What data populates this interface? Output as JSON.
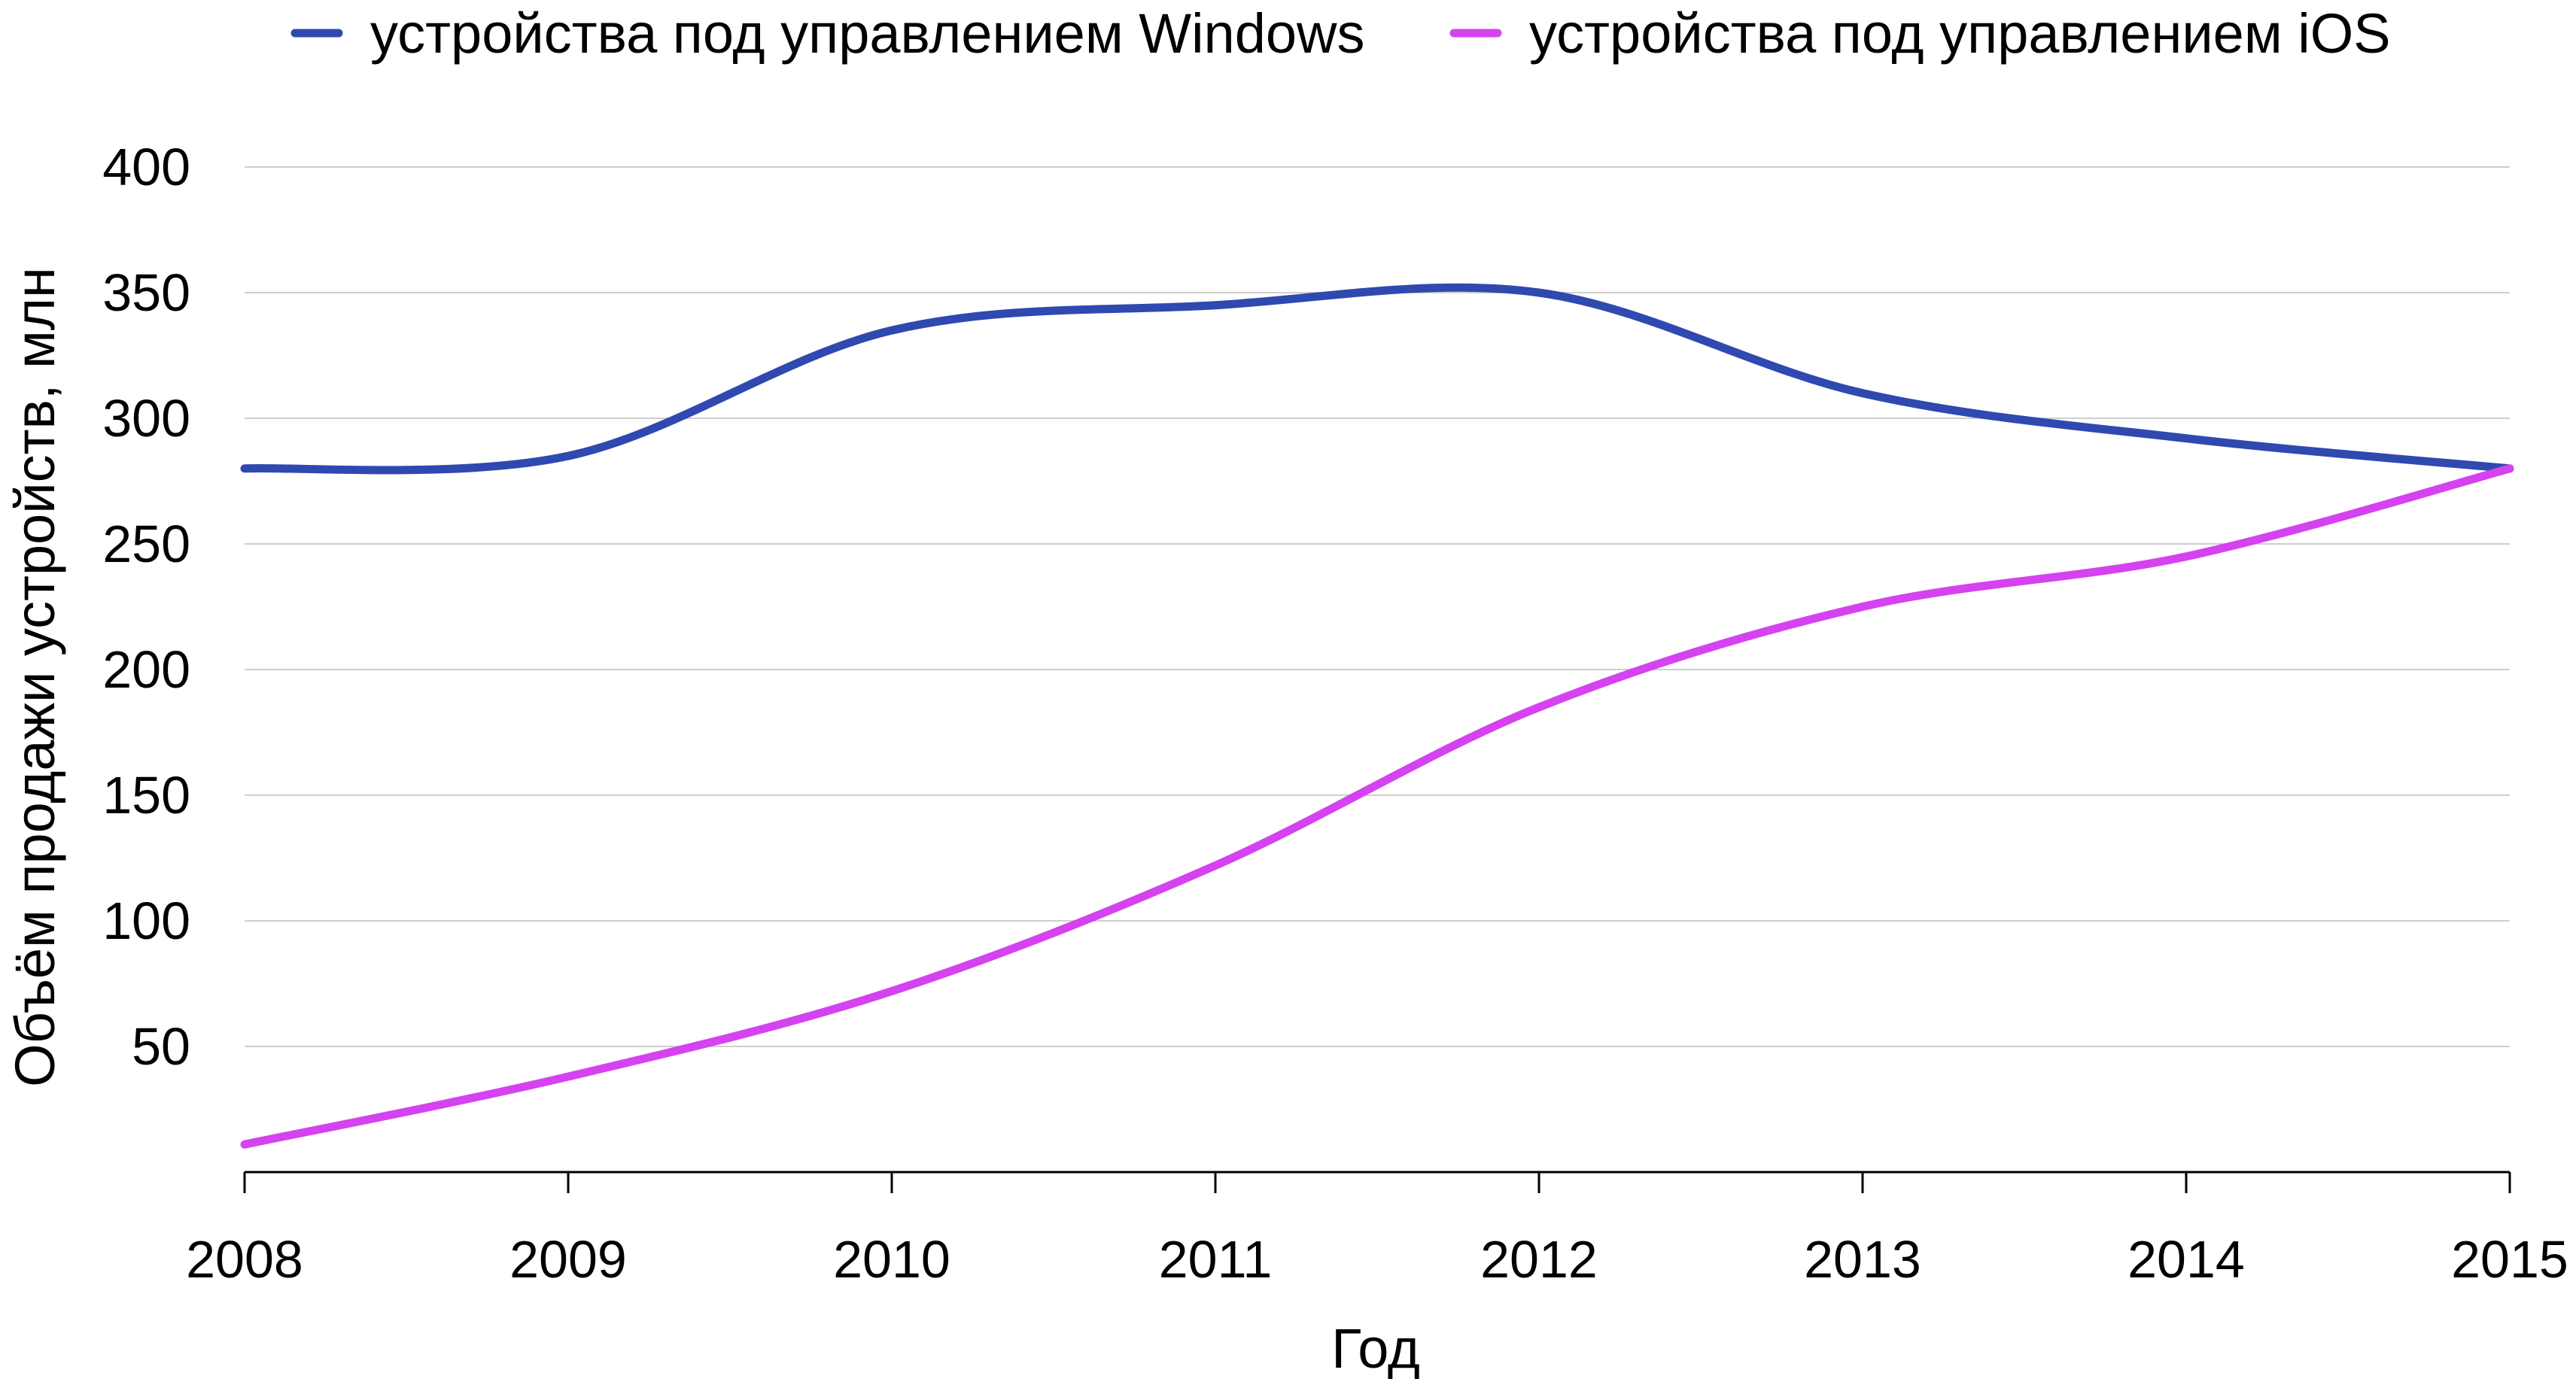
{
  "chart_data": {
    "type": "line",
    "title": "",
    "xlabel": "Год",
    "ylabel": "Объём продажи устройств, млн",
    "x": [
      2008,
      2009,
      2010,
      2011,
      2012,
      2013,
      2014,
      2015
    ],
    "xlim": [
      2008,
      2015
    ],
    "ylim": [
      0,
      400
    ],
    "x_ticks": [
      "2008",
      "2009",
      "2010",
      "2011",
      "2012",
      "2013",
      "2014",
      "2015"
    ],
    "y_ticks": [
      "50",
      "100",
      "150",
      "200",
      "250",
      "300",
      "350",
      "400"
    ],
    "grid": "horizontal",
    "smooth": true,
    "legend_position": "top",
    "series": [
      {
        "name": "устройства под управлением Windows",
        "color": "#2f49b0",
        "values": [
          280,
          285,
          335,
          345,
          350,
          310,
          292,
          280
        ]
      },
      {
        "name": "устройства под управлением iOS",
        "color": "#d443ef",
        "values": [
          11,
          38,
          72,
          122,
          185,
          225,
          245,
          280
        ]
      }
    ]
  }
}
